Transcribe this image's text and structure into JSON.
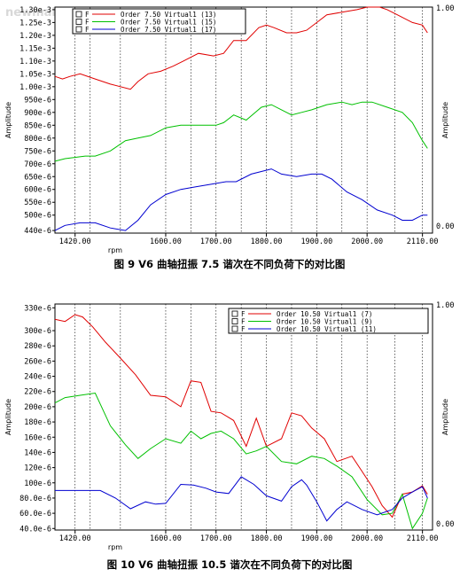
{
  "watermark": "newmaker.com",
  "chart_data": [
    {
      "type": "line",
      "title": "",
      "caption": "图 9 V6 曲轴扭振 7.5 谐次在不同负荷下的对比图",
      "xlabel": "rpm",
      "ylabel": "Amplitude",
      "y2label": "Amplitude",
      "xlim": [
        1380,
        2130
      ],
      "ylim": [
        0.00043,
        0.00131
      ],
      "x_ticks": [
        1420,
        1600,
        1700,
        1800,
        1900,
        2000,
        2110
      ],
      "x_tick_labels": [
        "1420.00",
        "1600.00",
        "1700.00",
        "1800.00",
        "1900.00",
        "2000.00",
        "2110.00"
      ],
      "y_ticks": [
        0.00044,
        0.0005,
        0.00055,
        0.0006,
        0.00065,
        0.0007,
        0.00075,
        0.0008,
        0.00085,
        0.0009,
        0.00095,
        0.001,
        0.00105,
        0.0011,
        0.00115,
        0.0012,
        0.00125,
        0.0013
      ],
      "y_tick_labels": [
        "440e-6",
        "500e-6",
        "550e-6",
        "600e-6",
        "650e-6",
        "700e-6",
        "750e-6",
        "800e-6",
        "850e-6",
        "900e-6",
        "950e-6",
        "1.00e-3",
        "1.05e-3",
        "1.10e-3",
        "1.15e-3",
        "1.20e-3",
        "1.25e-3",
        "1.30e-3"
      ],
      "right_axis_labels": [
        "1.00",
        "0.00"
      ],
      "grid": "vertical dotted",
      "legend_position": "top-left",
      "series": [
        {
          "name": "Order 7.50 Virtual1 (13)",
          "legend_marker": "F",
          "color": "#e00000",
          "x": [
            1380,
            1395,
            1410,
            1430,
            1460,
            1490,
            1530,
            1545,
            1565,
            1590,
            1615,
            1635,
            1665,
            1695,
            1715,
            1735,
            1760,
            1785,
            1800,
            1815,
            1840,
            1860,
            1880,
            1900,
            1920,
            1950,
            1980,
            2000,
            2025,
            2040,
            2050,
            2070,
            2090,
            2110,
            2120
          ],
          "y": [
            0.00104,
            0.00103,
            0.00104,
            0.00105,
            0.00103,
            0.00101,
            0.00099,
            0.00102,
            0.00105,
            0.00106,
            0.00108,
            0.0011,
            0.00113,
            0.00112,
            0.00113,
            0.00118,
            0.00118,
            0.00123,
            0.00124,
            0.00123,
            0.00121,
            0.00121,
            0.00122,
            0.00125,
            0.00128,
            0.00129,
            0.0013,
            0.00131,
            0.00131,
            0.0013,
            0.00129,
            0.00127,
            0.00125,
            0.00124,
            0.00121
          ]
        },
        {
          "name": "Order 7.50 Virtual1 (15)",
          "legend_marker": "F",
          "color": "#00c000",
          "x": [
            1380,
            1400,
            1440,
            1460,
            1490,
            1520,
            1545,
            1570,
            1600,
            1630,
            1660,
            1700,
            1715,
            1735,
            1760,
            1790,
            1810,
            1830,
            1850,
            1870,
            1890,
            1920,
            1950,
            1970,
            1990,
            2010,
            2040,
            2070,
            2090,
            2110,
            2120
          ],
          "y": [
            0.00071,
            0.00072,
            0.00073,
            0.00073,
            0.00075,
            0.00079,
            0.0008,
            0.00081,
            0.00084,
            0.00085,
            0.00085,
            0.00085,
            0.00086,
            0.00089,
            0.00087,
            0.00092,
            0.00093,
            0.00091,
            0.00089,
            0.0009,
            0.00091,
            0.00093,
            0.00094,
            0.00093,
            0.00094,
            0.00094,
            0.00092,
            0.0009,
            0.00086,
            0.00079,
            0.00076
          ]
        },
        {
          "name": "Order 7.50 Virtual1 (17)",
          "legend_marker": "F",
          "color": "#0000d0",
          "x": [
            1380,
            1400,
            1430,
            1460,
            1490,
            1520,
            1545,
            1570,
            1600,
            1630,
            1660,
            1690,
            1720,
            1740,
            1770,
            1790,
            1810,
            1830,
            1860,
            1890,
            1910,
            1930,
            1960,
            1990,
            2020,
            2050,
            2070,
            2090,
            2110,
            2120
          ],
          "y": [
            0.00044,
            0.00046,
            0.00047,
            0.00047,
            0.00045,
            0.00044,
            0.00048,
            0.00054,
            0.00058,
            0.0006,
            0.00061,
            0.00062,
            0.00063,
            0.00063,
            0.00066,
            0.00067,
            0.00068,
            0.00066,
            0.00065,
            0.00066,
            0.00066,
            0.00064,
            0.00059,
            0.00056,
            0.00052,
            0.0005,
            0.00048,
            0.00048,
            0.0005,
            0.0005
          ]
        }
      ]
    },
    {
      "type": "line",
      "title": "",
      "caption": "图 10 V6 曲轴扭振 10.5 谐次在不同负荷下的对比图",
      "xlabel": "rpm",
      "ylabel": "Amplitude",
      "y2label": "Amplitude",
      "xlim": [
        1380,
        2130
      ],
      "ylim": [
        3.8e-05,
        0.000335
      ],
      "x_ticks": [
        1420,
        1600,
        1700,
        1800,
        1900,
        2000,
        2110
      ],
      "x_tick_labels": [
        "1420.00",
        "1600.00",
        "1700.00",
        "1800.00",
        "1900.00",
        "2000.00",
        "2110.00"
      ],
      "y_ticks": [
        4e-05,
        6e-05,
        8e-05,
        0.0001,
        0.00012,
        0.00014,
        0.00016,
        0.00018,
        0.0002,
        0.00022,
        0.00024,
        0.00026,
        0.00028,
        0.0003,
        0.00033
      ],
      "y_tick_labels": [
        "40.0e-6",
        "60.0e-6",
        "80.0e-6",
        "100e-6",
        "120e-6",
        "140e-6",
        "160e-6",
        "180e-6",
        "200e-6",
        "220e-6",
        "240e-6",
        "260e-6",
        "280e-6",
        "300e-6",
        "330e-6"
      ],
      "right_axis_labels": [
        "1.00",
        "0.00"
      ],
      "grid": "vertical dotted",
      "legend_position": "top-right",
      "series": [
        {
          "name": "Order 10.50 Virtual1 (7)",
          "legend_marker": "F",
          "color": "#e00000",
          "x": [
            1380,
            1400,
            1420,
            1435,
            1455,
            1480,
            1510,
            1540,
            1570,
            1600,
            1630,
            1650,
            1670,
            1690,
            1710,
            1735,
            1760,
            1780,
            1800,
            1830,
            1850,
            1870,
            1890,
            1915,
            1940,
            1970,
            1990,
            2010,
            2030,
            2050,
            2070,
            2090,
            2110,
            2120
          ],
          "y": [
            0.000315,
            0.000312,
            0.000321,
            0.000318,
            0.000305,
            0.000285,
            0.000264,
            0.000242,
            0.000215,
            0.000213,
            0.0002,
            0.000234,
            0.000232,
            0.000194,
            0.000192,
            0.000182,
            0.000148,
            0.000185,
            0.000148,
            0.000158,
            0.000192,
            0.000188,
            0.000172,
            0.000158,
            0.000128,
            0.000135,
            0.000115,
            9.5e-05,
            7e-05,
            5.5e-05,
            8.5e-05,
            8.8e-05,
            9.6e-05,
            8.5e-05
          ]
        },
        {
          "name": "Order 10.50 Virtual1 (9)",
          "legend_marker": "F",
          "color": "#00c000",
          "x": [
            1380,
            1400,
            1430,
            1460,
            1490,
            1520,
            1545,
            1570,
            1600,
            1630,
            1650,
            1670,
            1690,
            1710,
            1735,
            1760,
            1780,
            1800,
            1830,
            1860,
            1890,
            1915,
            1940,
            1970,
            2000,
            2030,
            2050,
            2070,
            2090,
            2110,
            2120
          ],
          "y": [
            0.000205,
            0.000212,
            0.000215,
            0.000218,
            0.000175,
            0.00015,
            0.000132,
            0.000145,
            0.000158,
            0.000152,
            0.000168,
            0.000158,
            0.000165,
            0.000168,
            0.000158,
            0.000138,
            0.000142,
            0.000148,
            0.000128,
            0.000125,
            0.000135,
            0.000132,
            0.000122,
            0.000108,
            7.8e-05,
            5.8e-05,
            6e-05,
            8.5e-05,
            4e-05,
            6e-05,
            8e-05
          ]
        },
        {
          "name": "Order 10.50 Virtual1 (11)",
          "legend_marker": "F",
          "color": "#0000d0",
          "x": [
            1380,
            1420,
            1470,
            1500,
            1530,
            1560,
            1580,
            1600,
            1630,
            1655,
            1680,
            1700,
            1725,
            1750,
            1775,
            1800,
            1830,
            1850,
            1870,
            1880,
            1900,
            1920,
            1940,
            1960,
            1990,
            2020,
            2050,
            2070,
            2090,
            2110,
            2120
          ],
          "y": [
            9e-05,
            9e-05,
            9e-05,
            8e-05,
            6.6e-05,
            7.5e-05,
            7.2e-05,
            7.3e-05,
            9.8e-05,
            9.7e-05,
            9.3e-05,
            8.8e-05,
            8.6e-05,
            0.000108,
            9.8e-05,
            8.3e-05,
            7.6e-05,
            9.5e-05,
            0.000104,
            9.7e-05,
            7.5e-05,
            5e-05,
            6.5e-05,
            7.5e-05,
            6.5e-05,
            5.8e-05,
            6.5e-05,
            8e-05,
            8.8e-05,
            9.5e-05,
            8e-05
          ]
        }
      ]
    }
  ]
}
